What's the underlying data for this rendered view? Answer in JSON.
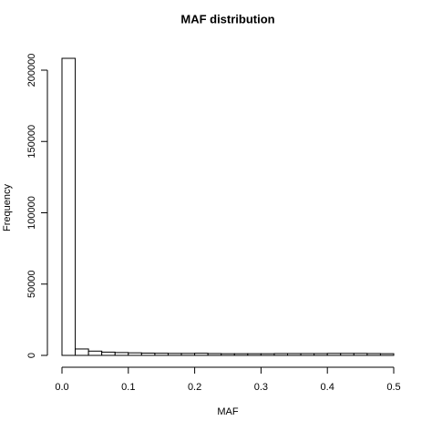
{
  "chart_data": {
    "type": "histogram",
    "title": "MAF distribution",
    "x_label": "MAF",
    "y_label": "Frequency",
    "bins": [
      0,
      0.02,
      0.04,
      0.06,
      0.08,
      0.1,
      0.12,
      0.14,
      0.16,
      0.18,
      0.2,
      0.22,
      0.24,
      0.26,
      0.28,
      0.3,
      0.32,
      0.34,
      0.36,
      0.38,
      0.4,
      0.42,
      0.44,
      0.46,
      0.48,
      0.5
    ],
    "values": [
      208300,
      4500,
      3000,
      2300,
      2000,
      1800,
      1600,
      1500,
      1400,
      1400,
      1500,
      1300,
      1200,
      1200,
      1200,
      1200,
      1300,
      1300,
      1300,
      1300,
      1400,
      1400,
      1400,
      1300,
      1200
    ],
    "color": "#ffffff",
    "xlim": [
      0,
      0.5
    ],
    "xticks": [
      {
        "value": 0,
        "label": "0.0"
      },
      0.1,
      0.2,
      0.3,
      0.4,
      0.5
    ],
    "ylim": [
      0,
      208300
    ],
    "yticks": [
      0,
      50000,
      100000,
      150000,
      200000
    ]
  }
}
